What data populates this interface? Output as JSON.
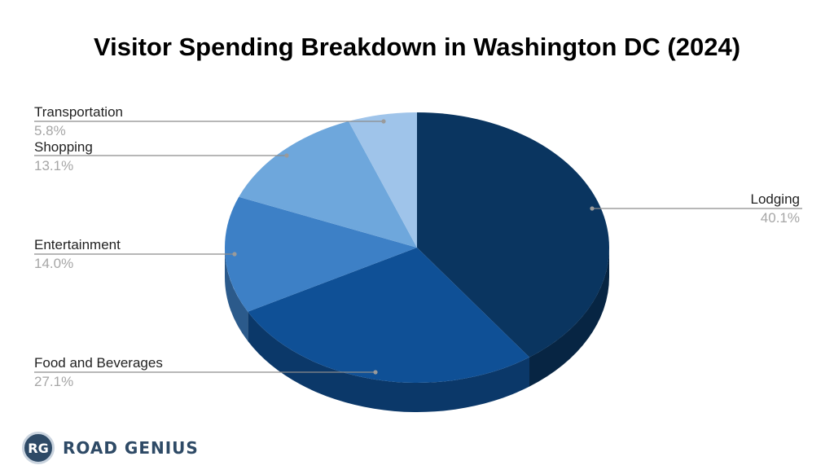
{
  "chart_data": {
    "type": "pie",
    "title": "Visitor Spending Breakdown in Washington DC (2024)",
    "slices": [
      {
        "label": "Lodging",
        "value": 40.1,
        "display": "40.1%",
        "color": "#0a3560"
      },
      {
        "label": "Food and Beverages",
        "value": 27.1,
        "display": "27.1%",
        "color": "#0f5096"
      },
      {
        "label": "Entertainment",
        "value": 14.0,
        "display": "14.0%",
        "color": "#3d80c6"
      },
      {
        "label": "Shopping",
        "value": 13.1,
        "display": "13.1%",
        "color": "#6ea7dc"
      },
      {
        "label": "Transportation",
        "value": 5.8,
        "display": "5.8%",
        "color": "#9fc4ea"
      }
    ],
    "legend": "none",
    "labels": "outside-with-leader-lines"
  },
  "brand": {
    "logo_text": "RG",
    "name": "ROAD GENIUS"
  }
}
